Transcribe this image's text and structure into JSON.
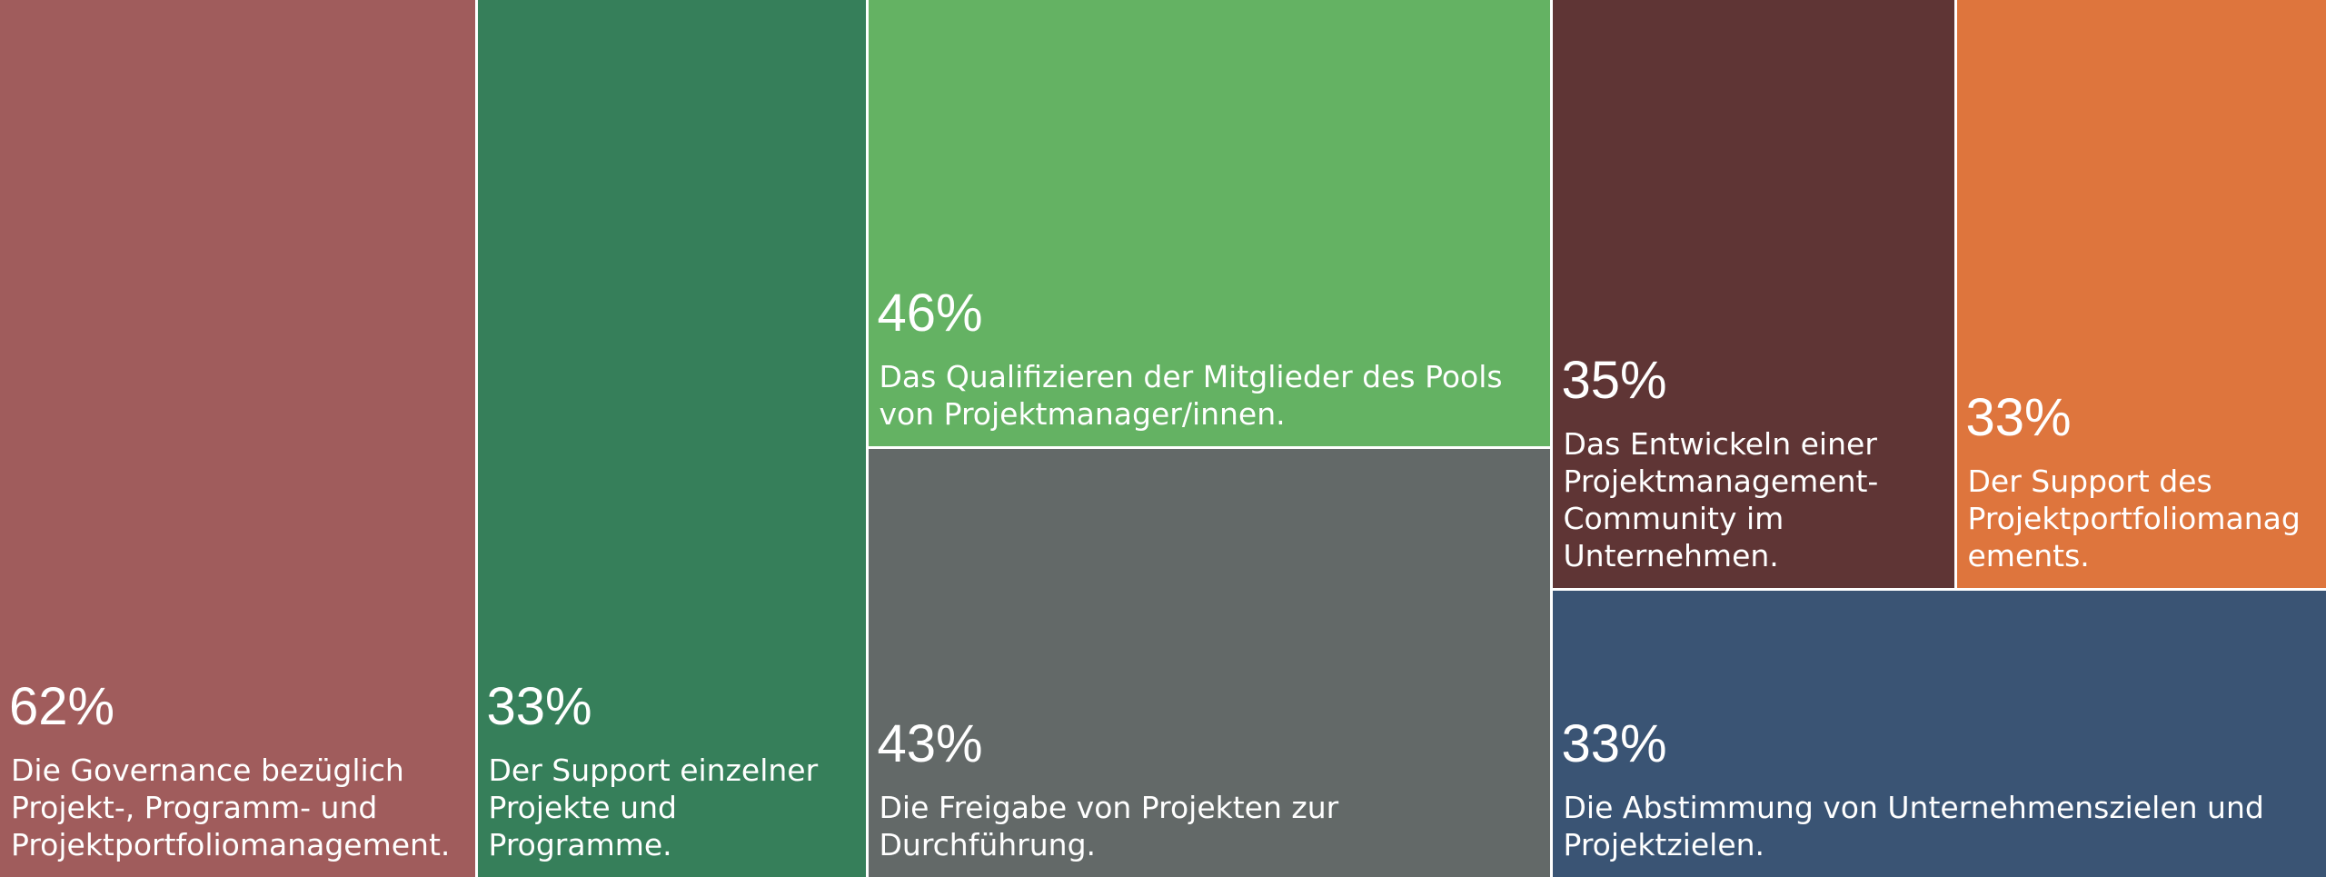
{
  "chart_data": {
    "type": "treemap",
    "title": "",
    "items": [
      {
        "value": 62,
        "label": "62%",
        "text": "Die Governance bezüglich Projekt-, Programm- und Projektportfoliomanagement.",
        "color": "#A05C5C"
      },
      {
        "value": 33,
        "label": "33%",
        "text": "Der Support einzelner Projekte und Programme.",
        "color": "#367F5A"
      },
      {
        "value": 46,
        "label": "46%",
        "text": "Das Qualifizieren der Mitglieder des Pools von Projektmanager/innen.",
        "color": "#64B263"
      },
      {
        "value": 43,
        "label": "43%",
        "text": "Die Freigabe von Projekten zur Durchführung.",
        "color": "#636968"
      },
      {
        "value": 35,
        "label": "35%",
        "text": "Das Entwickeln einer Projektmanagement-Community im Unternehmen.",
        "color": "#5F3535"
      },
      {
        "value": 33,
        "label": "33%",
        "text": "Der Support des Projektportfoliomanagements.",
        "color": "#DE753D"
      },
      {
        "value": 33,
        "label": "33%",
        "text": "Die Abstimmung von Unternehmenszielen und Projektzielen.",
        "color": "#3A5474"
      }
    ]
  }
}
